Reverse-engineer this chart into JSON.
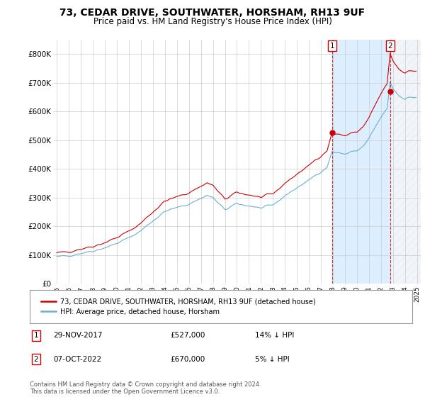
{
  "title": "73, CEDAR DRIVE, SOUTHWATER, HORSHAM, RH13 9UF",
  "subtitle": "Price paid vs. HM Land Registry's House Price Index (HPI)",
  "sale_points": [
    {
      "year": 2017.9167,
      "price": 527000,
      "label": "1",
      "date": "29-NOV-2017",
      "pct": "14% ↓ HPI"
    },
    {
      "year": 2022.75,
      "price": 670000,
      "label": "2",
      "date": "07-OCT-2022",
      "pct": "5% ↓ HPI"
    }
  ],
  "hpi_color": "#6baed6",
  "sale_color": "#cc0000",
  "shade_between_color": "#ddeeff",
  "shade_after_color": "#e8e8f0",
  "ylim": [
    0,
    850000
  ],
  "yticks": [
    0,
    100000,
    200000,
    300000,
    400000,
    500000,
    600000,
    700000,
    800000
  ],
  "ytick_labels": [
    "£0",
    "£100K",
    "£200K",
    "£300K",
    "£400K",
    "£500K",
    "£600K",
    "£700K",
    "£800K"
  ],
  "xlim_left": 1994.7,
  "xlim_right": 2025.3,
  "xtick_years": [
    1995,
    1996,
    1997,
    1998,
    1999,
    2000,
    2001,
    2002,
    2003,
    2004,
    2005,
    2006,
    2007,
    2008,
    2009,
    2010,
    2011,
    2012,
    2013,
    2014,
    2015,
    2016,
    2017,
    2018,
    2019,
    2020,
    2021,
    2022,
    2023,
    2024,
    2025
  ],
  "legend_label_sale": "73, CEDAR DRIVE, SOUTHWATER, HORSHAM, RH13 9UF (detached house)",
  "legend_label_hpi": "HPI: Average price, detached house, Horsham",
  "footnote": "Contains HM Land Registry data © Crown copyright and database right 2024.\nThis data is licensed under the Open Government Licence v3.0.",
  "bg_color": "#ffffff",
  "grid_color": "#cccccc"
}
